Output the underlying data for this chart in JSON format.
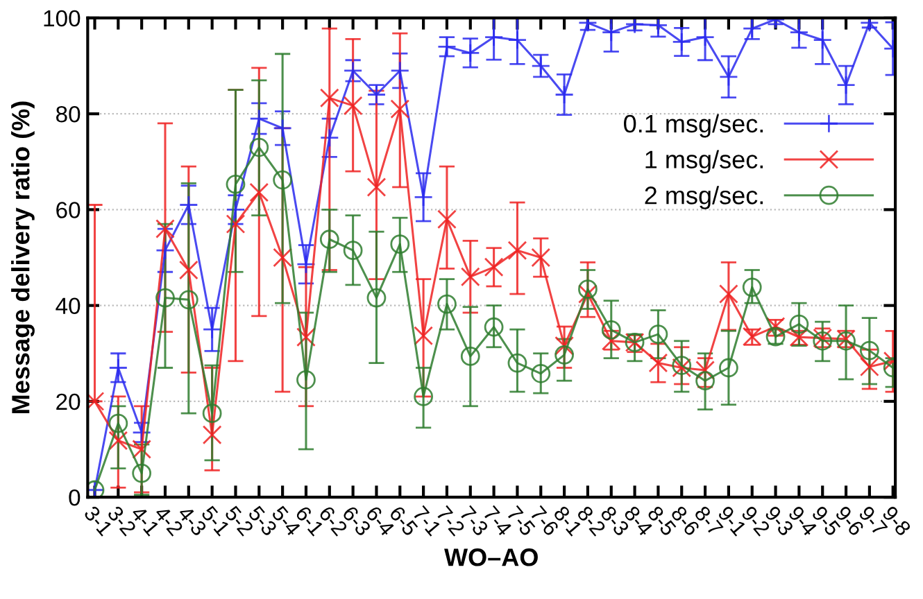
{
  "chart_data": {
    "type": "line",
    "xlabel": "WO–AO",
    "ylabel": "Message delivery ratio (%)",
    "categories": [
      "3-1",
      "3-2",
      "4-1",
      "4-2",
      "4-3",
      "5-1",
      "5-2",
      "5-3",
      "5-4",
      "6-1",
      "6-2",
      "6-3",
      "6-4",
      "6-5",
      "7-1",
      "7-2",
      "7-3",
      "7-4",
      "7-5",
      "7-6",
      "8-1",
      "8-2",
      "8-3",
      "8-4",
      "8-5",
      "8-6",
      "8-7",
      "9-1",
      "9-2",
      "9-3",
      "9-4",
      "9-5",
      "9-6",
      "9-7",
      "9-8"
    ],
    "ylim": [
      0,
      100
    ],
    "yticks": [
      0,
      20,
      40,
      60,
      80,
      100
    ],
    "grid": "y",
    "legend": "right",
    "series": [
      {
        "name": "0.1 msg/sec.",
        "color": "#2a2aee",
        "marker": "plus",
        "values": [
          1.5,
          27,
          13.5,
          51.5,
          61,
          35,
          60,
          79,
          77,
          48.6,
          75,
          89,
          84,
          89,
          62.6,
          94,
          92.7,
          96,
          95.4,
          90,
          84,
          99,
          97,
          98.7,
          98.5,
          95,
          96,
          87.7,
          97.8,
          99.7,
          97,
          95.4,
          86,
          99,
          93.6
        ],
        "errors": [
          null,
          [
            24,
            30
          ],
          [
            11.5,
            15.5
          ],
          [
            47,
            56
          ],
          [
            57,
            65
          ],
          [
            30.5,
            39.5
          ],
          [
            57,
            63
          ],
          [
            75.8,
            82.2
          ],
          [
            73.5,
            80.5
          ],
          [
            44.6,
            52.6
          ],
          [
            71,
            79
          ],
          [
            86.8,
            91.2
          ],
          [
            82,
            86
          ],
          [
            85.4,
            92.6
          ],
          [
            57.6,
            67.6
          ],
          [
            92,
            96
          ],
          [
            89.7,
            95.7
          ],
          [
            91.3,
            100
          ],
          [
            90.4,
            100
          ],
          [
            87.7,
            92.3
          ],
          [
            79.8,
            88.2
          ],
          [
            97.5,
            100
          ],
          [
            93,
            100
          ],
          [
            97.4,
            100
          ],
          [
            96.1,
            100
          ],
          [
            92.1,
            97.9
          ],
          [
            91.2,
            100
          ],
          [
            83.4,
            92
          ],
          [
            95.6,
            100
          ],
          [
            98.7,
            100
          ],
          [
            93.8,
            100
          ],
          [
            90.4,
            100
          ],
          [
            82,
            90
          ],
          [
            98,
            100
          ],
          [
            88.1,
            99.1
          ]
        ]
      },
      {
        "name": "1 msg/sec.",
        "color": "#ee2222",
        "marker": "cross",
        "values": [
          20,
          11.8,
          10,
          56,
          47.4,
          13,
          57,
          63.6,
          50,
          33.4,
          83.3,
          81.7,
          64.7,
          81,
          33.7,
          58,
          46,
          48,
          51.5,
          50,
          31.6,
          42.4,
          32.6,
          32.3,
          28,
          27,
          26.5,
          42.4,
          33.5,
          35.6,
          33.4,
          33.2,
          33,
          27.2,
          28.4
        ],
        "errors": [
          [
            20,
            61
          ],
          [
            2,
            21
          ],
          [
            1,
            19
          ],
          [
            34.5,
            78
          ],
          [
            26,
            69
          ],
          [
            5.6,
            27
          ],
          [
            28.4,
            85
          ],
          [
            37.8,
            89.6
          ],
          [
            22,
            77
          ],
          [
            19,
            48
          ],
          [
            47.4,
            97.8
          ],
          [
            68,
            95.6
          ],
          [
            45.5,
            84.8
          ],
          [
            64.7,
            96.8
          ],
          [
            21,
            45.5
          ],
          [
            47.7,
            69
          ],
          [
            38.5,
            53.5
          ],
          [
            44,
            52
          ],
          [
            42.4,
            61.5
          ],
          [
            46,
            54
          ],
          [
            27,
            35.6
          ],
          [
            37.6,
            49
          ],
          [
            30.8,
            34.7
          ],
          [
            30.3,
            33.8
          ],
          [
            24,
            32
          ],
          [
            23.6,
            31.3
          ],
          [
            23,
            29
          ],
          [
            34.9,
            49
          ],
          [
            31.8,
            35
          ],
          [
            33.7,
            37
          ],
          [
            31.8,
            34.7
          ],
          [
            31.3,
            35.2
          ],
          [
            31.3,
            34.7
          ],
          [
            22.6,
            30.8
          ],
          [
            22,
            34.7
          ]
        ]
      },
      {
        "name": "2 msg/sec.",
        "color": "#2e7d2e",
        "marker": "circle",
        "values": [
          1.5,
          15.4,
          5,
          41.6,
          41.2,
          17.5,
          65.3,
          73,
          66.2,
          24.5,
          53.8,
          51.5,
          41.6,
          52.8,
          21,
          40.3,
          29.4,
          35.5,
          28,
          25.8,
          29.7,
          43.4,
          34.9,
          32.3,
          34,
          27.5,
          24.3,
          27,
          43.8,
          33.5,
          36.1,
          32.6,
          32.6,
          30.6,
          27
        ],
        "errors": [
          null,
          [
            6,
            19
          ],
          [
            0.5,
            11
          ],
          [
            27,
            57
          ],
          [
            17.5,
            65.5
          ],
          [
            7.7,
            27.5
          ],
          [
            47,
            85
          ],
          [
            58.8,
            87
          ],
          [
            40.5,
            92.5
          ],
          [
            10,
            38.5
          ],
          [
            47,
            60
          ],
          [
            44.3,
            58.8
          ],
          [
            28,
            55.4
          ],
          [
            47,
            58.3
          ],
          [
            14.5,
            27
          ],
          [
            35,
            45.5
          ],
          [
            19,
            39.7
          ],
          [
            31.3,
            40
          ],
          [
            22,
            35
          ],
          [
            21.7,
            30
          ],
          [
            24.3,
            33
          ],
          [
            39.3,
            47.4
          ],
          [
            29,
            41
          ],
          [
            28.4,
            34
          ],
          [
            29,
            39
          ],
          [
            22,
            32.6
          ],
          [
            18.3,
            30
          ],
          [
            19.3,
            34.7
          ],
          [
            40.5,
            47.4
          ],
          [
            32,
            35
          ],
          [
            31.6,
            40.5
          ],
          [
            28.4,
            36.6
          ],
          [
            24.6,
            40
          ],
          [
            23.6,
            37.4
          ],
          [
            23,
            29
          ]
        ]
      }
    ]
  }
}
